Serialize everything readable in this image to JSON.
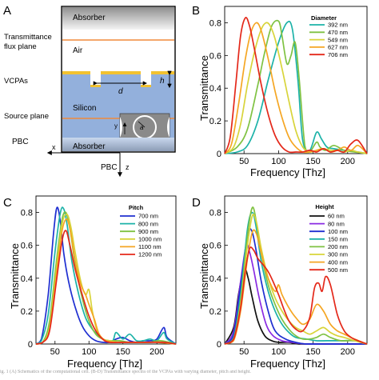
{
  "schematic": {
    "panel_label": "A",
    "absorber_top": "Absorber",
    "transmittance_line1": "Transmittance",
    "transmittance_line2": "flux plane",
    "air": "Air",
    "vcpas": "VCPAs",
    "d": "d",
    "h": "h",
    "source_plane": "Source plane",
    "silicon": "Silicon",
    "pbc_left": "PBC",
    "x_left": "x",
    "absorber_bottom": "Absorber",
    "pbc_bottom": "PBC",
    "z_bottom": "z",
    "inset_y": "y",
    "inset_x": "x",
    "inset_a": "a",
    "colors": {
      "absorber": "#9e9e9e",
      "silicon": "#93b0dc",
      "gold": "#f2c230",
      "flux_line": "#f08a3c"
    }
  },
  "chart_data": [
    {
      "panel": "B",
      "type": "line",
      "title": "",
      "legend_title": "Diameter",
      "legend_position": "top-right",
      "xlabel": "Frequency [Thz]",
      "ylabel": "Transmittance",
      "xlim": [
        22,
        228
      ],
      "ylim": [
        0,
        0.9
      ],
      "xticks": [
        50,
        100,
        150,
        200
      ],
      "yticks": [
        0,
        0.2,
        0.4,
        0.6,
        0.8
      ],
      "series": [
        {
          "name": "392 nm",
          "color": "#1cb2a8",
          "x": [
            22,
            40,
            55,
            70,
            85,
            100,
            112,
            120,
            128,
            135,
            145,
            155,
            162,
            170,
            180,
            195,
            215,
            228
          ],
          "y": [
            0,
            0.01,
            0.05,
            0.2,
            0.45,
            0.68,
            0.8,
            0.76,
            0.45,
            0.08,
            0.02,
            0.13,
            0.09,
            0.04,
            0.03,
            0.02,
            0.01,
            0
          ]
        },
        {
          "name": "470 nm",
          "color": "#7fc242",
          "x": [
            22,
            40,
            55,
            70,
            80,
            90,
            100,
            105,
            112,
            118,
            124,
            130,
            138,
            145,
            155,
            160,
            168,
            180,
            195,
            210,
            228
          ],
          "y": [
            0,
            0.04,
            0.15,
            0.42,
            0.62,
            0.78,
            0.81,
            0.72,
            0.55,
            0.6,
            0.68,
            0.45,
            0.05,
            0.01,
            0.07,
            0.04,
            0.02,
            0.05,
            0.02,
            0.01,
            0
          ]
        },
        {
          "name": "549 nm",
          "color": "#d8d43a",
          "x": [
            22,
            35,
            45,
            55,
            65,
            75,
            82,
            88,
            95,
            105,
            115,
            125,
            135,
            145,
            155,
            165,
            175,
            185,
            195,
            205,
            215,
            228
          ],
          "y": [
            0,
            0.04,
            0.18,
            0.42,
            0.62,
            0.76,
            0.8,
            0.78,
            0.7,
            0.52,
            0.32,
            0.14,
            0.04,
            0.01,
            0.02,
            0.03,
            0.02,
            0.02,
            0.01,
            0.02,
            0.01,
            0
          ]
        },
        {
          "name": "627 nm",
          "color": "#f5a623",
          "x": [
            22,
            32,
            42,
            52,
            60,
            68,
            75,
            85,
            95,
            105,
            115,
            125,
            135,
            145,
            155,
            165,
            175,
            185,
            195,
            205,
            215,
            228
          ],
          "y": [
            0,
            0.06,
            0.3,
            0.58,
            0.74,
            0.8,
            0.75,
            0.58,
            0.38,
            0.22,
            0.1,
            0.04,
            0.01,
            0.01,
            0.02,
            0.03,
            0.01,
            0.02,
            0.04,
            0.02,
            0.05,
            0
          ]
        },
        {
          "name": "706 nm",
          "color": "#e4281a",
          "x": [
            22,
            30,
            38,
            45,
            52,
            58,
            65,
            75,
            85,
            95,
            105,
            115,
            125,
            135,
            145,
            155,
            165,
            175,
            185,
            195,
            205,
            215,
            228
          ],
          "y": [
            0,
            0.1,
            0.42,
            0.72,
            0.83,
            0.78,
            0.64,
            0.42,
            0.24,
            0.11,
            0.04,
            0.01,
            0.01,
            0.01,
            0.02,
            0.01,
            0.03,
            0.01,
            0.02,
            0.01,
            0.06,
            0.08,
            0
          ]
        }
      ]
    },
    {
      "panel": "C",
      "type": "line",
      "title": "",
      "legend_title": "Pitch",
      "legend_position": "top-right",
      "xlabel": "Frequency [Thz]",
      "ylabel": "Transmittance",
      "xlim": [
        22,
        228
      ],
      "ylim": [
        0,
        0.9
      ],
      "xticks": [
        50,
        100,
        150,
        200
      ],
      "yticks": [
        0,
        0.2,
        0.4,
        0.6,
        0.8
      ],
      "series": [
        {
          "name": "700 nm",
          "color": "#1f2fd1",
          "x": [
            22,
            30,
            40,
            48,
            53,
            58,
            63,
            70,
            80,
            90,
            100,
            110,
            120,
            130,
            140,
            150,
            160,
            170,
            180,
            190,
            200,
            210,
            215,
            228
          ],
          "y": [
            0,
            0.03,
            0.3,
            0.68,
            0.83,
            0.74,
            0.55,
            0.38,
            0.22,
            0.11,
            0.05,
            0.02,
            0.01,
            0.01,
            0.03,
            0.04,
            0.02,
            0.01,
            0.02,
            0.02,
            0.03,
            0.1,
            0.04,
            0
          ]
        },
        {
          "name": "800 nm",
          "color": "#1cb2a8",
          "x": [
            22,
            30,
            40,
            50,
            58,
            63,
            68,
            75,
            85,
            95,
            105,
            115,
            125,
            135,
            140,
            150,
            160,
            170,
            180,
            190,
            200,
            210,
            215,
            228
          ],
          "y": [
            0,
            0.02,
            0.18,
            0.56,
            0.8,
            0.82,
            0.72,
            0.5,
            0.3,
            0.16,
            0.09,
            0.05,
            0.02,
            0.02,
            0.07,
            0.03,
            0.06,
            0.02,
            0.02,
            0.03,
            0.02,
            0.07,
            0.03,
            0
          ]
        },
        {
          "name": "900 nm",
          "color": "#7fc242",
          "x": [
            22,
            32,
            42,
            52,
            60,
            66,
            72,
            80,
            90,
            100,
            110,
            120,
            130,
            145,
            160,
            175,
            190,
            205,
            228
          ],
          "y": [
            0,
            0.01,
            0.14,
            0.5,
            0.75,
            0.8,
            0.7,
            0.48,
            0.28,
            0.14,
            0.06,
            0.03,
            0.02,
            0.02,
            0.01,
            0.01,
            0.01,
            0.02,
            0
          ]
        },
        {
          "name": "1000 nm",
          "color": "#d8d43a",
          "x": [
            22,
            32,
            42,
            52,
            60,
            67,
            73,
            80,
            88,
            95,
            100,
            105,
            112,
            120,
            130,
            145,
            160,
            175,
            190,
            205,
            228
          ],
          "y": [
            0,
            0.01,
            0.1,
            0.45,
            0.72,
            0.79,
            0.72,
            0.55,
            0.38,
            0.3,
            0.33,
            0.2,
            0.08,
            0.03,
            0.02,
            0.01,
            0.01,
            0.01,
            0.01,
            0.01,
            0
          ]
        },
        {
          "name": "1100 nm",
          "color": "#f5a623",
          "x": [
            22,
            32,
            42,
            52,
            60,
            67,
            73,
            80,
            88,
            95,
            100,
            108,
            115,
            125,
            140,
            160,
            180,
            200,
            228
          ],
          "y": [
            0,
            0.01,
            0.09,
            0.42,
            0.68,
            0.76,
            0.68,
            0.5,
            0.36,
            0.3,
            0.24,
            0.15,
            0.06,
            0.02,
            0.01,
            0.01,
            0.01,
            0.01,
            0
          ]
        },
        {
          "name": "1200 nm",
          "color": "#e4281a",
          "x": [
            22,
            32,
            42,
            52,
            60,
            66,
            72,
            80,
            90,
            100,
            110,
            120,
            130,
            150,
            170,
            190,
            210,
            228
          ],
          "y": [
            0,
            0.01,
            0.08,
            0.38,
            0.62,
            0.69,
            0.6,
            0.45,
            0.3,
            0.17,
            0.08,
            0.03,
            0.01,
            0.01,
            0.01,
            0.01,
            0.01,
            0
          ]
        }
      ]
    },
    {
      "panel": "D",
      "type": "line",
      "title": "",
      "legend_title": "Height",
      "legend_position": "top-right",
      "xlabel": "Frequency [Thz]",
      "ylabel": "Transmittance",
      "xlim": [
        22,
        228
      ],
      "ylim": [
        0,
        0.9
      ],
      "xticks": [
        50,
        100,
        150,
        200
      ],
      "yticks": [
        0,
        0.2,
        0.4,
        0.6,
        0.8
      ],
      "series": [
        {
          "name": "60 nm",
          "color": "#111111",
          "x": [
            22,
            35,
            42,
            50,
            56,
            62,
            70,
            80,
            90,
            100,
            115,
            130,
            160,
            200,
            228
          ],
          "y": [
            0,
            0.1,
            0.3,
            0.46,
            0.4,
            0.28,
            0.14,
            0.05,
            0.02,
            0.01,
            0.01,
            0,
            0,
            0,
            0
          ]
        },
        {
          "name": "80 nm",
          "color": "#8a2be2",
          "x": [
            22,
            35,
            45,
            53,
            58,
            64,
            72,
            82,
            92,
            105,
            120,
            140,
            170,
            200,
            228
          ],
          "y": [
            0,
            0.08,
            0.38,
            0.6,
            0.56,
            0.45,
            0.28,
            0.12,
            0.05,
            0.02,
            0.01,
            0,
            0,
            0,
            0
          ]
        },
        {
          "name": "100 nm",
          "color": "#1f2fd1",
          "x": [
            22,
            35,
            45,
            55,
            61,
            67,
            75,
            85,
            95,
            110,
            125,
            140,
            170,
            200,
            228
          ],
          "y": [
            0,
            0.06,
            0.35,
            0.66,
            0.69,
            0.58,
            0.38,
            0.2,
            0.08,
            0.03,
            0.01,
            0,
            0,
            0,
            0
          ]
        },
        {
          "name": "150 nm",
          "color": "#1cb2a8",
          "x": [
            22,
            35,
            45,
            55,
            62,
            68,
            75,
            85,
            95,
            105,
            115,
            125,
            140,
            155,
            170,
            190,
            210,
            228
          ],
          "y": [
            0,
            0.04,
            0.3,
            0.7,
            0.8,
            0.7,
            0.5,
            0.32,
            0.2,
            0.12,
            0.07,
            0.04,
            0.03,
            0.02,
            0.02,
            0.02,
            0.02,
            0
          ]
        },
        {
          "name": "200 nm",
          "color": "#7fc242",
          "x": [
            22,
            35,
            45,
            55,
            62,
            68,
            75,
            85,
            95,
            105,
            115,
            125,
            135,
            145,
            155,
            165,
            175,
            190,
            210,
            228
          ],
          "y": [
            0,
            0.03,
            0.26,
            0.66,
            0.83,
            0.74,
            0.55,
            0.36,
            0.24,
            0.15,
            0.09,
            0.05,
            0.03,
            0.03,
            0.04,
            0.06,
            0.04,
            0.02,
            0.02,
            0
          ]
        },
        {
          "name": "300 nm",
          "color": "#d8d43a",
          "x": [
            22,
            35,
            45,
            55,
            62,
            68,
            75,
            85,
            95,
            105,
            115,
            125,
            135,
            145,
            155,
            165,
            175,
            185,
            195,
            210,
            228
          ],
          "y": [
            0,
            0.03,
            0.24,
            0.6,
            0.78,
            0.74,
            0.58,
            0.4,
            0.28,
            0.2,
            0.14,
            0.1,
            0.08,
            0.06,
            0.08,
            0.1,
            0.07,
            0.05,
            0.04,
            0.02,
            0
          ]
        },
        {
          "name": "400 nm",
          "color": "#f5a623",
          "x": [
            22,
            35,
            45,
            55,
            62,
            68,
            75,
            85,
            95,
            100,
            105,
            115,
            125,
            135,
            145,
            155,
            165,
            175,
            185,
            195,
            210,
            228
          ],
          "y": [
            0,
            0.02,
            0.2,
            0.52,
            0.68,
            0.67,
            0.55,
            0.4,
            0.32,
            0.36,
            0.3,
            0.22,
            0.16,
            0.12,
            0.15,
            0.24,
            0.2,
            0.12,
            0.08,
            0.06,
            0.03,
            0
          ]
        },
        {
          "name": "500 nm",
          "color": "#e4281a",
          "x": [
            22,
            35,
            45,
            52,
            58,
            64,
            70,
            78,
            85,
            92,
            100,
            107,
            115,
            125,
            135,
            145,
            152,
            158,
            163,
            168,
            175,
            185,
            195,
            205,
            215,
            228
          ],
          "y": [
            0,
            0.03,
            0.22,
            0.45,
            0.58,
            0.57,
            0.52,
            0.48,
            0.44,
            0.38,
            0.3,
            0.22,
            0.14,
            0.09,
            0.08,
            0.16,
            0.34,
            0.37,
            0.32,
            0.41,
            0.36,
            0.18,
            0.08,
            0.04,
            0.02,
            0
          ]
        }
      ]
    }
  ],
  "caption": "ig. 1 (A) Schematics of the computational cell. (B-D) Transmittance spectra of the VCPAs with varying diameter, pitch and height."
}
